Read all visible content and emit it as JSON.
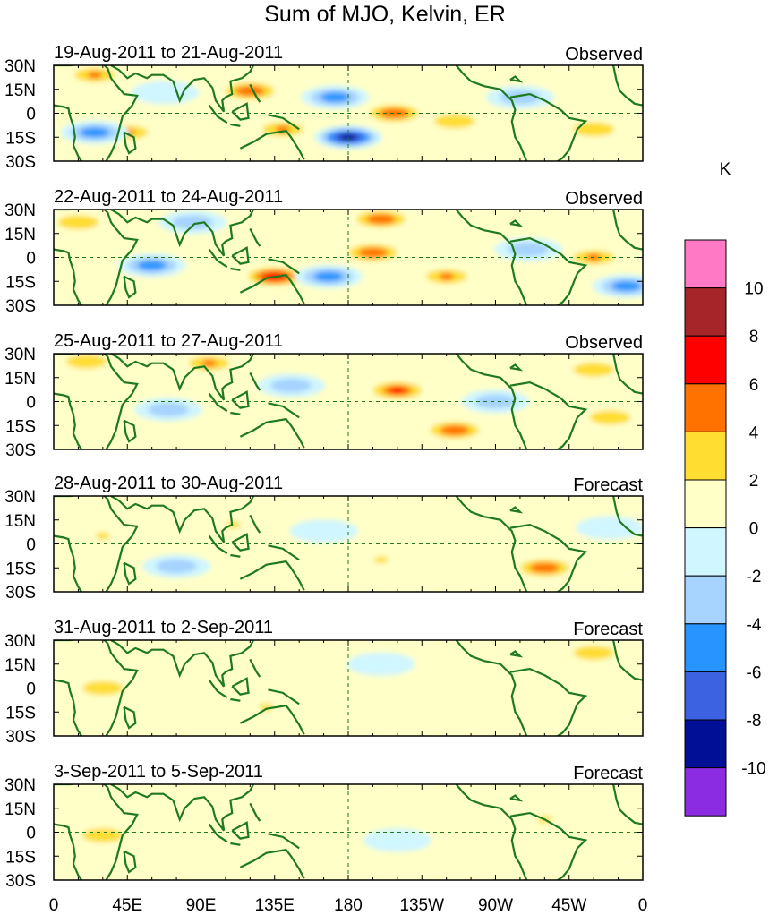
{
  "chart_data": {
    "type": "heatmap",
    "title": "Sum of MJO, Kelvin, ER",
    "units": "K",
    "x_ticks": [
      "0",
      "45E",
      "90E",
      "135E",
      "180",
      "135W",
      "90W",
      "45W",
      "0"
    ],
    "y_ticks": [
      "30N",
      "15N",
      "0",
      "15S",
      "30S"
    ],
    "lat_range": [
      -30,
      30
    ],
    "lon_range": [
      0,
      360
    ],
    "colorbar": {
      "levels": [
        "10",
        "8",
        "6",
        "4",
        "2",
        "0",
        "-2",
        "-4",
        "-6",
        "-8",
        "-10"
      ],
      "colors": [
        "#ff79c5",
        "#a52528",
        "#ff0000",
        "#ff7200",
        "#ffdd31",
        "#ffffc8",
        "#d0f6ff",
        "#a6d3ff",
        "#2894ff",
        "#3d62e1",
        "#000f96",
        "#8b2be2"
      ]
    },
    "panels": [
      {
        "period": "19-Aug-2011 to 21-Aug-2011",
        "status": "Observed",
        "blobs": [
          {
            "lon": 25,
            "lat": 24,
            "value": 4
          },
          {
            "lon": 45,
            "lat": -12,
            "value": 4
          },
          {
            "lon": 25,
            "lat": -12,
            "value": -6
          },
          {
            "lon": 68,
            "lat": 13,
            "value": -2
          },
          {
            "lon": 120,
            "lat": 14,
            "value": 5
          },
          {
            "lon": 140,
            "lat": -10,
            "value": 4
          },
          {
            "lon": 172,
            "lat": 10,
            "value": -5
          },
          {
            "lon": 180,
            "lat": -15,
            "value": -9
          },
          {
            "lon": 208,
            "lat": 0,
            "value": 5
          },
          {
            "lon": 245,
            "lat": -5,
            "value": 3
          },
          {
            "lon": 285,
            "lat": 10,
            "value": -3
          },
          {
            "lon": 330,
            "lat": -10,
            "value": 3
          }
        ]
      },
      {
        "period": "22-Aug-2011 to 24-Aug-2011",
        "status": "Observed",
        "blobs": [
          {
            "lon": 15,
            "lat": 22,
            "value": 3
          },
          {
            "lon": 85,
            "lat": 22,
            "value": -4
          },
          {
            "lon": 60,
            "lat": -5,
            "value": -5
          },
          {
            "lon": 135,
            "lat": -12,
            "value": 7
          },
          {
            "lon": 168,
            "lat": -12,
            "value": -6
          },
          {
            "lon": 200,
            "lat": 24,
            "value": 5
          },
          {
            "lon": 195,
            "lat": 3,
            "value": 5
          },
          {
            "lon": 240,
            "lat": -12,
            "value": 4
          },
          {
            "lon": 290,
            "lat": 5,
            "value": -3
          },
          {
            "lon": 330,
            "lat": 0,
            "value": 4
          },
          {
            "lon": 350,
            "lat": -18,
            "value": -5
          }
        ]
      },
      {
        "period": "25-Aug-2011 to 27-Aug-2011",
        "status": "Observed",
        "blobs": [
          {
            "lon": 20,
            "lat": 25,
            "value": 3
          },
          {
            "lon": 95,
            "lat": 24,
            "value": 4
          },
          {
            "lon": 70,
            "lat": -5,
            "value": -4
          },
          {
            "lon": 145,
            "lat": 10,
            "value": -3
          },
          {
            "lon": 210,
            "lat": 7,
            "value": 6
          },
          {
            "lon": 245,
            "lat": -18,
            "value": 5
          },
          {
            "lon": 270,
            "lat": 0,
            "value": -4
          },
          {
            "lon": 330,
            "lat": 20,
            "value": 3
          },
          {
            "lon": 340,
            "lat": -10,
            "value": 3
          }
        ]
      },
      {
        "period": "28-Aug-2011 to 30-Aug-2011",
        "status": "Forecast",
        "blobs": [
          {
            "lon": 30,
            "lat": 5,
            "value": 2
          },
          {
            "lon": 75,
            "lat": -14,
            "value": -3
          },
          {
            "lon": 110,
            "lat": 12,
            "value": 2
          },
          {
            "lon": 165,
            "lat": 8,
            "value": -2
          },
          {
            "lon": 200,
            "lat": -10,
            "value": 2
          },
          {
            "lon": 300,
            "lat": -15,
            "value": 5
          },
          {
            "lon": 340,
            "lat": 10,
            "value": -2
          }
        ]
      },
      {
        "period": "31-Aug-2011 to 2-Sep-2011",
        "status": "Forecast",
        "blobs": [
          {
            "lon": 30,
            "lat": 0,
            "value": 3
          },
          {
            "lon": 200,
            "lat": 15,
            "value": -2
          },
          {
            "lon": 330,
            "lat": 22,
            "value": 3
          },
          {
            "lon": 130,
            "lat": -12,
            "value": 2
          }
        ]
      },
      {
        "period": "3-Sep-2011 to 5-Sep-2011",
        "status": "Forecast",
        "blobs": [
          {
            "lon": 30,
            "lat": -2,
            "value": 3
          },
          {
            "lon": 210,
            "lat": -5,
            "value": -2
          },
          {
            "lon": 300,
            "lat": 8,
            "value": 2
          }
        ]
      }
    ]
  }
}
